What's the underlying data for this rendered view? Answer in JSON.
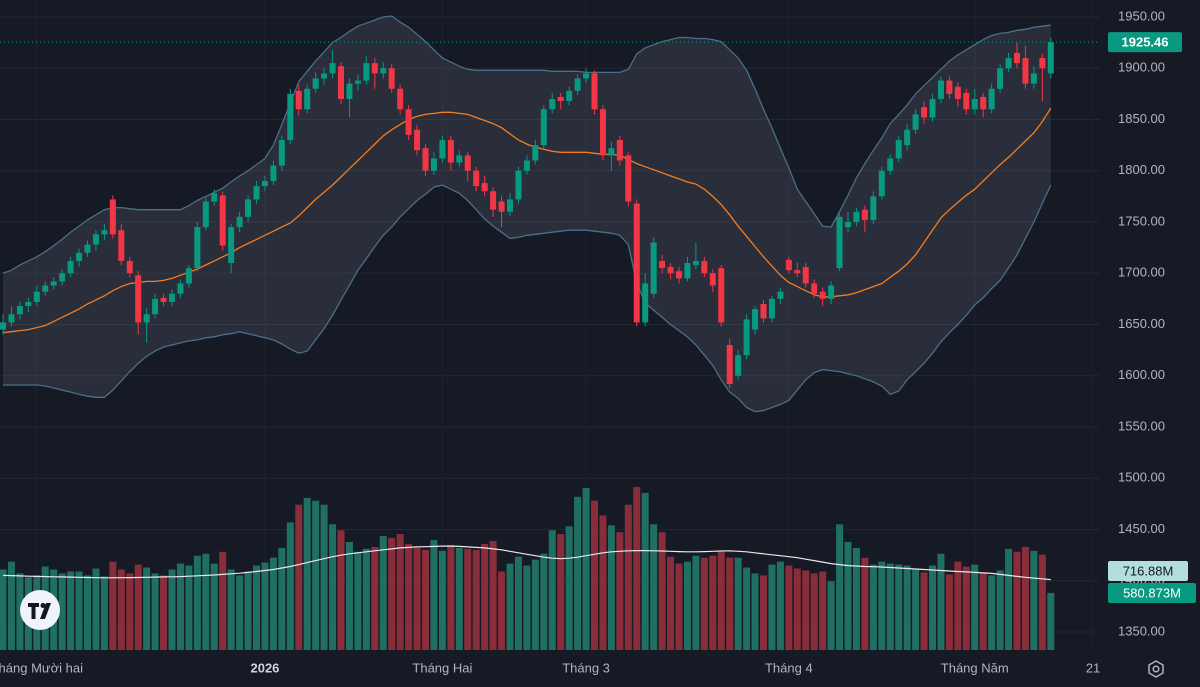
{
  "chart_data": {
    "type": "candlestick",
    "up_color": "#089981",
    "down_color": "#f23645",
    "ylim": [
      1332.4,
      1966.6
    ],
    "yticks": [
      {
        "value": 1950,
        "label": "1950.00"
      },
      {
        "value": 1900,
        "label": "1900.00"
      },
      {
        "value": 1850,
        "label": "1850.00"
      },
      {
        "value": 1800,
        "label": "1800.00"
      },
      {
        "value": 1750,
        "label": "1750.00"
      },
      {
        "value": 1700,
        "label": "1700.00"
      },
      {
        "value": 1650,
        "label": "1650.00"
      },
      {
        "value": 1600,
        "label": "1600.00"
      },
      {
        "value": 1550,
        "label": "1550.00"
      },
      {
        "value": 1500,
        "label": "1500.00"
      },
      {
        "value": 1450,
        "label": "1450.00"
      },
      {
        "value": 1400,
        "label": "1400.00"
      },
      {
        "value": 1350,
        "label": "1350.00"
      }
    ],
    "xticks": [
      {
        "value": 4,
        "label": "Tháng Mười hai"
      },
      {
        "value": 31,
        "label": "2026"
      },
      {
        "value": 52,
        "label": "Tháng Hai"
      },
      {
        "value": 69,
        "label": "Tháng 3"
      },
      {
        "value": 93,
        "label": "Tháng 4"
      },
      {
        "value": 115,
        "label": "Tháng Năm"
      },
      {
        "value": 129,
        "label": "21"
      }
    ],
    "grid": true,
    "last_price_label": "1925.46",
    "ohlc": [
      [
        1645,
        1660,
        1640,
        1652
      ],
      [
        1652,
        1668,
        1648,
        1660
      ],
      [
        1660,
        1672,
        1655,
        1668
      ],
      [
        1668,
        1676,
        1662,
        1672
      ],
      [
        1672,
        1688,
        1668,
        1682
      ],
      [
        1682,
        1692,
        1678,
        1688
      ],
      [
        1688,
        1696,
        1684,
        1692
      ],
      [
        1692,
        1704,
        1688,
        1700
      ],
      [
        1700,
        1716,
        1696,
        1712
      ],
      [
        1712,
        1724,
        1706,
        1720
      ],
      [
        1720,
        1732,
        1716,
        1728
      ],
      [
        1728,
        1742,
        1722,
        1738
      ],
      [
        1738,
        1748,
        1732,
        1742
      ],
      [
        1772,
        1776,
        1734,
        1738
      ],
      [
        1742,
        1748,
        1708,
        1712
      ],
      [
        1712,
        1716,
        1696,
        1700
      ],
      [
        1698,
        1702,
        1640,
        1652
      ],
      [
        1652,
        1666,
        1632,
        1660
      ],
      [
        1660,
        1680,
        1656,
        1675
      ],
      [
        1676,
        1680,
        1668,
        1672
      ],
      [
        1672,
        1684,
        1668,
        1680
      ],
      [
        1680,
        1694,
        1676,
        1690
      ],
      [
        1690,
        1708,
        1686,
        1705
      ],
      [
        1705,
        1750,
        1702,
        1745
      ],
      [
        1745,
        1774,
        1742,
        1770
      ],
      [
        1770,
        1782,
        1766,
        1778
      ],
      [
        1776,
        1780,
        1722,
        1727
      ],
      [
        1710,
        1748,
        1700,
        1745
      ],
      [
        1745,
        1760,
        1740,
        1755
      ],
      [
        1755,
        1776,
        1750,
        1772
      ],
      [
        1772,
        1790,
        1768,
        1785
      ],
      [
        1785,
        1795,
        1780,
        1790
      ],
      [
        1790,
        1810,
        1786,
        1805
      ],
      [
        1805,
        1834,
        1800,
        1830
      ],
      [
        1830,
        1880,
        1826,
        1875
      ],
      [
        1878,
        1884,
        1854,
        1860
      ],
      [
        1860,
        1884,
        1856,
        1880
      ],
      [
        1880,
        1896,
        1876,
        1890
      ],
      [
        1890,
        1900,
        1884,
        1895
      ],
      [
        1895,
        1918,
        1890,
        1905
      ],
      [
        1902,
        1906,
        1865,
        1870
      ],
      [
        1870,
        1890,
        1852,
        1885
      ],
      [
        1885,
        1894,
        1878,
        1888
      ],
      [
        1888,
        1912,
        1884,
        1905
      ],
      [
        1905,
        1910,
        1880,
        1895
      ],
      [
        1895,
        1906,
        1890,
        1900
      ],
      [
        1900,
        1904,
        1876,
        1880
      ],
      [
        1880,
        1884,
        1855,
        1860
      ],
      [
        1860,
        1864,
        1830,
        1835
      ],
      [
        1840,
        1845,
        1815,
        1820
      ],
      [
        1822,
        1826,
        1795,
        1800
      ],
      [
        1800,
        1818,
        1796,
        1812
      ],
      [
        1812,
        1834,
        1808,
        1830
      ],
      [
        1830,
        1834,
        1800,
        1808
      ],
      [
        1808,
        1820,
        1804,
        1815
      ],
      [
        1815,
        1818,
        1790,
        1800
      ],
      [
        1800,
        1804,
        1780,
        1785
      ],
      [
        1788,
        1795,
        1775,
        1780
      ],
      [
        1780,
        1784,
        1755,
        1762
      ],
      [
        1770,
        1776,
        1745,
        1760
      ],
      [
        1760,
        1778,
        1756,
        1772
      ],
      [
        1772,
        1804,
        1768,
        1800
      ],
      [
        1800,
        1815,
        1796,
        1810
      ],
      [
        1810,
        1830,
        1806,
        1825
      ],
      [
        1825,
        1864,
        1822,
        1860
      ],
      [
        1860,
        1876,
        1856,
        1870
      ],
      [
        1872,
        1876,
        1860,
        1868
      ],
      [
        1868,
        1882,
        1864,
        1878
      ],
      [
        1878,
        1894,
        1874,
        1890
      ],
      [
        1890,
        1900,
        1886,
        1895
      ],
      [
        1895,
        1898,
        1855,
        1860
      ],
      [
        1860,
        1864,
        1810,
        1815
      ],
      [
        1815,
        1828,
        1800,
        1822
      ],
      [
        1830,
        1834,
        1805,
        1810
      ],
      [
        1815,
        1818,
        1765,
        1770
      ],
      [
        1768,
        1772,
        1648,
        1652
      ],
      [
        1652,
        1700,
        1648,
        1690
      ],
      [
        1680,
        1735,
        1676,
        1730
      ],
      [
        1712,
        1718,
        1700,
        1705
      ],
      [
        1706,
        1710,
        1694,
        1700
      ],
      [
        1702,
        1706,
        1690,
        1695
      ],
      [
        1695,
        1716,
        1692,
        1710
      ],
      [
        1708,
        1730,
        1704,
        1712
      ],
      [
        1712,
        1716,
        1696,
        1700
      ],
      [
        1700,
        1704,
        1682,
        1688
      ],
      [
        1705,
        1708,
        1648,
        1652
      ],
      [
        1630,
        1636,
        1588,
        1592
      ],
      [
        1600,
        1625,
        1596,
        1620
      ],
      [
        1620,
        1660,
        1616,
        1655
      ],
      [
        1645,
        1668,
        1640,
        1665
      ],
      [
        1670,
        1674,
        1652,
        1656
      ],
      [
        1656,
        1678,
        1652,
        1675
      ],
      [
        1675,
        1686,
        1670,
        1682
      ],
      [
        1713,
        1716,
        1700,
        1703
      ],
      [
        1703,
        1710,
        1696,
        1700
      ],
      [
        1706,
        1710,
        1686,
        1690
      ],
      [
        1690,
        1694,
        1676,
        1680
      ],
      [
        1682,
        1686,
        1668,
        1675
      ],
      [
        1675,
        1692,
        1670,
        1688
      ],
      [
        1705,
        1758,
        1702,
        1755
      ],
      [
        1745,
        1760,
        1740,
        1750
      ],
      [
        1750,
        1764,
        1746,
        1760
      ],
      [
        1762,
        1766,
        1740,
        1752
      ],
      [
        1752,
        1780,
        1748,
        1775
      ],
      [
        1775,
        1804,
        1772,
        1800
      ],
      [
        1800,
        1816,
        1796,
        1812
      ],
      [
        1812,
        1834,
        1808,
        1830
      ],
      [
        1825,
        1846,
        1820,
        1840
      ],
      [
        1840,
        1860,
        1836,
        1855
      ],
      [
        1862,
        1868,
        1846,
        1852
      ],
      [
        1852,
        1875,
        1848,
        1870
      ],
      [
        1870,
        1892,
        1866,
        1888
      ],
      [
        1888,
        1892,
        1870,
        1875
      ],
      [
        1882,
        1886,
        1862,
        1870
      ],
      [
        1876,
        1880,
        1855,
        1860
      ],
      [
        1860,
        1880,
        1855,
        1870
      ],
      [
        1872,
        1876,
        1852,
        1860
      ],
      [
        1860,
        1885,
        1856,
        1880
      ],
      [
        1880,
        1904,
        1876,
        1900
      ],
      [
        1900,
        1915,
        1896,
        1910
      ],
      [
        1915,
        1925,
        1900,
        1905
      ],
      [
        1910,
        1922,
        1880,
        1885
      ],
      [
        1885,
        1902,
        1880,
        1895
      ],
      [
        1910,
        1914,
        1868,
        1900
      ],
      [
        1895,
        1930,
        1890,
        1925.46
      ]
    ],
    "bollinger": {
      "band_color": "#4a6f8a",
      "middle_color": "#f57c20",
      "fill": "rgba(120,130,145,0.2)",
      "upper": [
        1700,
        1703,
        1708,
        1712,
        1716,
        1721,
        1727,
        1733,
        1740,
        1746,
        1752,
        1757,
        1762,
        1764,
        1764,
        1763,
        1762,
        1762,
        1762,
        1762,
        1762,
        1762,
        1766,
        1771,
        1775,
        1779,
        1783,
        1789,
        1795,
        1800,
        1806,
        1812,
        1825,
        1845,
        1866,
        1887,
        1897,
        1907,
        1916,
        1925,
        1930,
        1936,
        1941,
        1944,
        1947,
        1950,
        1951,
        1945,
        1940,
        1933,
        1926,
        1918,
        1910,
        1906,
        1902,
        1899,
        1898,
        1898,
        1898,
        1898,
        1898,
        1898,
        1898,
        1898,
        1898,
        1897,
        1897,
        1897,
        1897,
        1896,
        1896,
        1896,
        1896,
        1896,
        1899,
        1914,
        1920,
        1923,
        1926,
        1928,
        1930,
        1930,
        1929,
        1929,
        1928,
        1926,
        1918,
        1910,
        1898,
        1880,
        1860,
        1842,
        1822,
        1803,
        1782,
        1770,
        1758,
        1746,
        1745,
        1760,
        1776,
        1793,
        1807,
        1820,
        1832,
        1846,
        1855,
        1864,
        1875,
        1883,
        1891,
        1899,
        1907,
        1913,
        1918,
        1923,
        1928,
        1932,
        1934,
        1935,
        1937,
        1938,
        1940,
        1941,
        1942
      ],
      "middle": [
        1642,
        1643,
        1644,
        1645,
        1647,
        1649,
        1653,
        1657,
        1661,
        1665,
        1670,
        1674,
        1678,
        1683,
        1687,
        1690,
        1691,
        1692,
        1692,
        1693,
        1695,
        1698,
        1701,
        1704,
        1708,
        1712,
        1716,
        1720,
        1725,
        1729,
        1733,
        1737,
        1741,
        1745,
        1749,
        1756,
        1764,
        1772,
        1779,
        1786,
        1794,
        1802,
        1810,
        1818,
        1826,
        1834,
        1840,
        1845,
        1850,
        1853,
        1855,
        1856,
        1857,
        1857,
        1856,
        1855,
        1852,
        1849,
        1846,
        1842,
        1836,
        1830,
        1826,
        1823,
        1821,
        1819,
        1818,
        1818,
        1818,
        1818,
        1817,
        1816,
        1816,
        1815,
        1811,
        1807,
        1804,
        1801,
        1798,
        1795,
        1792,
        1789,
        1787,
        1782,
        1775,
        1767,
        1757,
        1746,
        1736,
        1726,
        1716,
        1707,
        1698,
        1691,
        1687,
        1683,
        1679,
        1677,
        1677,
        1678,
        1679,
        1681,
        1684,
        1687,
        1690,
        1696,
        1702,
        1709,
        1718,
        1730,
        1742,
        1754,
        1762,
        1769,
        1776,
        1782,
        1790,
        1798,
        1806,
        1813,
        1821,
        1829,
        1837,
        1848,
        1861
      ],
      "lower": [
        1591,
        1591,
        1591,
        1591,
        1591,
        1590,
        1588,
        1586,
        1584,
        1582,
        1580,
        1579,
        1579,
        1586,
        1595,
        1604,
        1612,
        1619,
        1624,
        1628,
        1630,
        1632,
        1634,
        1635,
        1637,
        1638,
        1640,
        1641,
        1643,
        1641,
        1639,
        1637,
        1635,
        1631,
        1626,
        1622,
        1624,
        1635,
        1646,
        1659,
        1674,
        1688,
        1703,
        1714,
        1726,
        1737,
        1745,
        1755,
        1763,
        1771,
        1777,
        1784,
        1786,
        1782,
        1778,
        1771,
        1762,
        1753,
        1746,
        1740,
        1734,
        1735,
        1737,
        1738,
        1739,
        1740,
        1741,
        1742,
        1742,
        1742,
        1741,
        1740,
        1739,
        1737,
        1728,
        1690,
        1671,
        1664,
        1657,
        1650,
        1644,
        1638,
        1630,
        1620,
        1610,
        1596,
        1584,
        1578,
        1569,
        1565,
        1566,
        1569,
        1572,
        1576,
        1586,
        1596,
        1603,
        1606,
        1605,
        1604,
        1602,
        1600,
        1597,
        1594,
        1590,
        1582,
        1585,
        1596,
        1604,
        1612,
        1622,
        1633,
        1642,
        1650,
        1659,
        1669,
        1676,
        1685,
        1693,
        1705,
        1718,
        1734,
        1750,
        1768,
        1786
      ]
    },
    "volume": {
      "ylim": [
        0,
        6620
      ],
      "up_color": "#1f6f62",
      "down_color": "#8a2d3b",
      "ma_color": "#e8e8e8",
      "label_color": "#089981",
      "ma_label_color": "#b2dfdb",
      "last_label": "580.873M",
      "ma_last_label": "716.88M",
      "values": [
        820,
        900,
        780,
        740,
        760,
        850,
        820,
        780,
        800,
        800,
        760,
        830,
        750,
        900,
        820,
        780,
        870,
        840,
        780,
        760,
        820,
        880,
        860,
        960,
        980,
        880,
        1000,
        820,
        760,
        800,
        860,
        890,
        940,
        1040,
        1300,
        1480,
        1550,
        1520,
        1480,
        1280,
        1220,
        1100,
        1000,
        1030,
        1050,
        1160,
        1140,
        1180,
        1080,
        1040,
        1020,
        1120,
        1010,
        1070,
        1040,
        1030,
        1020,
        1080,
        1110,
        800,
        880,
        950,
        860,
        920,
        980,
        1220,
        1180,
        1260,
        1560,
        1650,
        1520,
        1370,
        1270,
        1200,
        1480,
        1660,
        1600,
        1280,
        1200,
        950,
        880,
        900,
        960,
        940,
        960,
        1000,
        940,
        940,
        840,
        780,
        760,
        870,
        900,
        860,
        830,
        810,
        780,
        800,
        700,
        1280,
        1100,
        1040,
        940,
        870,
        900,
        880,
        870,
        860,
        830,
        790,
        860,
        980,
        770,
        900,
        850,
        870,
        790,
        760,
        810,
        1030,
        1000,
        1050,
        1010,
        970,
        580.873
      ],
      "ma": [
        760,
        758,
        755,
        752,
        750,
        748,
        746,
        744,
        742,
        740,
        738,
        736,
        735,
        735,
        736,
        737,
        738,
        740,
        742,
        744,
        746,
        748,
        752,
        756,
        760,
        764,
        770,
        776,
        782,
        790,
        800,
        810,
        820,
        835,
        850,
        870,
        890,
        910,
        930,
        950,
        965,
        980,
        990,
        1000,
        1010,
        1020,
        1030,
        1040,
        1045,
        1050,
        1052,
        1055,
        1058,
        1058,
        1055,
        1050,
        1045,
        1040,
        1030,
        1020,
        1005,
        990,
        975,
        960,
        945,
        935,
        930,
        935,
        945,
        960,
        975,
        990,
        1000,
        1005,
        1010,
        1012,
        1012,
        1010,
        1008,
        1005,
        1002,
        1000,
        1000,
        1002,
        1005,
        1008,
        1010,
        1005,
        1000,
        990,
        980,
        970,
        960,
        950,
        940,
        925,
        910,
        895,
        880,
        870,
        860,
        855,
        850,
        848,
        845,
        840,
        835,
        830,
        825,
        820,
        815,
        810,
        805,
        800,
        795,
        790,
        785,
        780,
        770,
        760,
        750,
        740,
        732,
        725,
        716.88
      ]
    }
  }
}
